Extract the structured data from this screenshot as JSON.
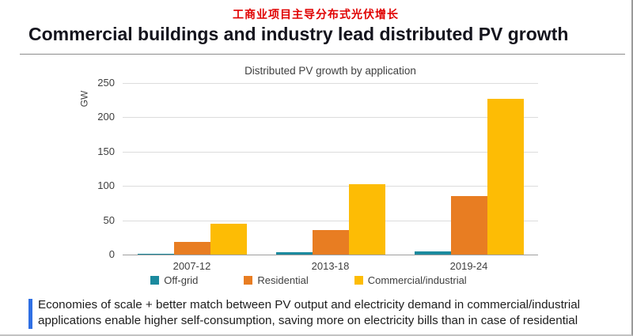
{
  "page": {
    "red_title": "工商业项目主导分布式光伏增长",
    "heading": "Commercial buildings and industry lead distributed PV growth"
  },
  "chart_data": {
    "type": "bar",
    "title": "Distributed PV growth by application",
    "xlabel": "",
    "ylabel": "GW",
    "categories": [
      "2007-12",
      "2013-18",
      "2019-24"
    ],
    "series": [
      {
        "name": "Off-grid",
        "color": "#1b8a9e",
        "values": [
          1,
          3,
          5
        ]
      },
      {
        "name": "Residential",
        "color": "#e87d22",
        "values": [
          19,
          36,
          85
        ]
      },
      {
        "name": "Commercial/industrial",
        "color": "#fdbc05",
        "values": [
          45,
          103,
          227
        ]
      }
    ],
    "ylim": [
      0,
      250
    ],
    "yticks": [
      0,
      50,
      100,
      150,
      200,
      250
    ],
    "grid": true,
    "legend_position": "bottom"
  },
  "footnote": {
    "text": "Economies of scale + better match between PV output and electricity demand in commercial/industrial applications enable higher self-consumption, saving more on electricity bills than in case of residential",
    "accent_color": "#2f6fe4"
  },
  "colors": {
    "red_title": "#e00000",
    "heading": "#14141d",
    "gridline": "#dcdcdc",
    "axis_line": "#9e9e9e"
  }
}
